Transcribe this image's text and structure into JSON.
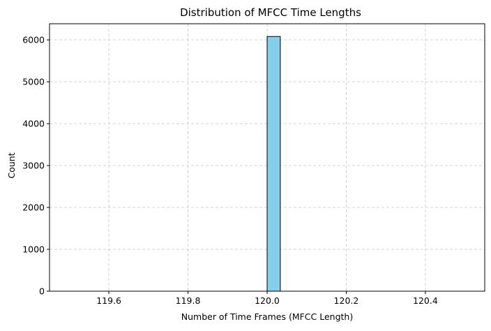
{
  "chart_data": {
    "type": "bar",
    "title": "Distribution of MFCC Time Lengths",
    "xlabel": "Number of Time Frames (MFCC Length)",
    "ylabel": "Count",
    "xlim": [
      119.45,
      120.55
    ],
    "ylim": [
      0,
      6385
    ],
    "xticks": [
      119.6,
      119.8,
      120.0,
      120.2,
      120.4
    ],
    "xtick_labels": [
      "119.6",
      "119.8",
      "120.0",
      "120.2",
      "120.4"
    ],
    "yticks": [
      0,
      1000,
      2000,
      3000,
      4000,
      5000,
      6000
    ],
    "ytick_labels": [
      "0",
      "1000",
      "2000",
      "3000",
      "4000",
      "5000",
      "6000"
    ],
    "bin_range": [
      119.5,
      120.5
    ],
    "bin_count": 30,
    "bins": [
      {
        "x0": 120.0,
        "x1": 120.0333,
        "count": 6081
      }
    ],
    "grid": true,
    "bar_color": "#87CEEB",
    "edge_color": "#000000",
    "grid_color": "#CCCCCC"
  }
}
